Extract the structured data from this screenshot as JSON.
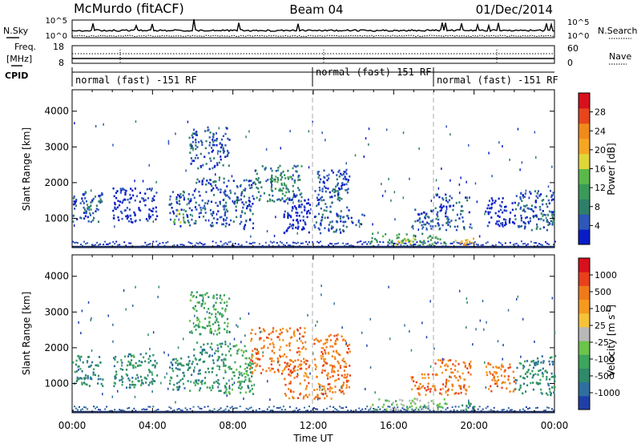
{
  "chart_data": [
    {
      "type": "line",
      "panel": "header",
      "station": "McMurdo (fitACF)",
      "beam": "Beam 04",
      "date": "01/Dec/2014",
      "left_label": "N.Sky",
      "right_label": "N.Search",
      "y_tick_labels": [
        "10^5",
        "10^0"
      ],
      "right_tick_labels": [
        "10^5",
        "10^0"
      ]
    },
    {
      "type": "line",
      "panel": "frequency",
      "left_label": "Freq.",
      "left_unit": "[MHz]",
      "left_ticks": [
        "18",
        "8"
      ],
      "right_label": "Nave",
      "right_ticks": [
        "60",
        "0"
      ]
    },
    {
      "type": "table",
      "panel": "cpid",
      "label": "CPID",
      "segments": [
        {
          "start": "00:00",
          "end": "12:00",
          "label": "normal (fast) -151 RF"
        },
        {
          "start": "12:00",
          "end": "18:00",
          "label": "normal (fast) 151 RF"
        },
        {
          "start": "18:00",
          "end": "24:00",
          "label": "normal (fast) -151 RF"
        }
      ]
    },
    {
      "type": "heatmap",
      "panel": "power",
      "ylabel": "Slant Range [km]",
      "y_ticks": [
        "1000",
        "2000",
        "3000",
        "4000"
      ],
      "ylim": [
        180,
        4600
      ],
      "xlim": [
        0,
        24
      ],
      "colorbar_label": "Power [dB]",
      "colorbar_ticks": [
        "4",
        "8",
        "12",
        "16",
        "20",
        "24",
        "28"
      ],
      "colorbar_colors": [
        "#0a1cc8",
        "#2e57b8",
        "#2e7f6a",
        "#3a9a58",
        "#5ab84a",
        "#dfd63a",
        "#f5a623",
        "#f08a1a",
        "#e8451c",
        "#d8101c"
      ],
      "scatter_regions": [
        {
          "t0": 0.0,
          "t1": 1.5,
          "r0": 900,
          "r1": 1800,
          "level": 1
        },
        {
          "t0": 0.6,
          "t1": 1.2,
          "r0": 1150,
          "r1": 1500,
          "level": 2
        },
        {
          "t0": 2.0,
          "t1": 4.2,
          "r0": 900,
          "r1": 1900,
          "level": 0
        },
        {
          "t0": 4.8,
          "t1": 6.0,
          "r0": 800,
          "r1": 1800,
          "level": 1
        },
        {
          "t0": 5.0,
          "t1": 5.6,
          "r0": 900,
          "r1": 1300,
          "level": 4
        },
        {
          "t0": 5.8,
          "t1": 7.8,
          "r0": 2400,
          "r1": 3600,
          "level": 1
        },
        {
          "t0": 6.0,
          "t1": 7.6,
          "r0": 800,
          "r1": 2200,
          "level": 1
        },
        {
          "t0": 7.5,
          "t1": 9.0,
          "r0": 700,
          "r1": 2100,
          "level": 1
        },
        {
          "t0": 9.0,
          "t1": 11.4,
          "r0": 1500,
          "r1": 2500,
          "level": 2
        },
        {
          "t0": 9.8,
          "t1": 10.8,
          "r0": 1800,
          "r1": 2200,
          "level": 3
        },
        {
          "t0": 10.5,
          "t1": 11.8,
          "r0": 600,
          "r1": 1700,
          "level": 0
        },
        {
          "t0": 12.0,
          "t1": 13.8,
          "r0": 600,
          "r1": 2400,
          "level": 1
        },
        {
          "t0": 13.0,
          "t1": 14.5,
          "r0": 800,
          "r1": 1200,
          "level": 1
        },
        {
          "t0": 14.8,
          "t1": 18.6,
          "r0": 230,
          "r1": 600,
          "level": 3
        },
        {
          "t0": 16.0,
          "t1": 17.2,
          "r0": 280,
          "r1": 500,
          "level": 5
        },
        {
          "t0": 16.8,
          "t1": 18.0,
          "r0": 700,
          "r1": 1300,
          "level": 1
        },
        {
          "t0": 18.0,
          "t1": 19.8,
          "r0": 700,
          "r1": 1700,
          "level": 1
        },
        {
          "t0": 19.0,
          "t1": 20.0,
          "r0": 250,
          "r1": 500,
          "level": 6
        },
        {
          "t0": 20.5,
          "t1": 22.0,
          "r0": 800,
          "r1": 1600,
          "level": 0
        },
        {
          "t0": 22.0,
          "t1": 24.0,
          "r0": 700,
          "r1": 1800,
          "level": 1
        },
        {
          "t0": 23.2,
          "t1": 24.0,
          "r0": 900,
          "r1": 1300,
          "level": 2
        }
      ]
    },
    {
      "type": "heatmap",
      "panel": "velocity",
      "ylabel": "Slant Range [km]",
      "y_ticks": [
        "1000",
        "2000",
        "3000",
        "4000"
      ],
      "ylim": [
        180,
        4600
      ],
      "xlim": [
        0,
        24
      ],
      "xlabel": "Time UT",
      "x_tick_labels": [
        "00:00",
        "04:00",
        "08:00",
        "12:00",
        "16:00",
        "20:00",
        "00:00"
      ],
      "colorbar_label": "Velocity [m s",
      "colorbar_label_superscript": "-1",
      "colorbar_label_close": "]",
      "colorbar_ticks": [
        "1000",
        "500",
        "100",
        "25",
        "-25",
        "-100",
        "-500",
        "-1000"
      ],
      "colorbar_colors": [
        "#1f3fa8",
        "#2f6fa0",
        "#2e8a6a",
        "#3ba65c",
        "#6cc44a",
        "#b8b8b8",
        "#f5c23a",
        "#f59a1f",
        "#f07a1a",
        "#e8401c",
        "#d8101c"
      ],
      "scatter_regions": [
        {
          "t0": 0.0,
          "t1": 1.5,
          "r0": 900,
          "r1": 1800,
          "level": 2
        },
        {
          "t0": 2.0,
          "t1": 4.2,
          "r0": 900,
          "r1": 1900,
          "level": 2
        },
        {
          "t0": 4.8,
          "t1": 6.0,
          "r0": 800,
          "r1": 1800,
          "level": 2
        },
        {
          "t0": 5.8,
          "t1": 7.8,
          "r0": 2400,
          "r1": 3600,
          "level": 3
        },
        {
          "t0": 6.0,
          "t1": 7.6,
          "r0": 800,
          "r1": 2200,
          "level": 2
        },
        {
          "t0": 7.5,
          "t1": 9.0,
          "r0": 700,
          "r1": 2100,
          "level": 3
        },
        {
          "t0": 8.8,
          "t1": 11.6,
          "r0": 1300,
          "r1": 2600,
          "level": 8
        },
        {
          "t0": 10.5,
          "t1": 11.8,
          "r0": 600,
          "r1": 1700,
          "level": 8
        },
        {
          "t0": 12.0,
          "t1": 13.8,
          "r0": 600,
          "r1": 2400,
          "level": 8
        },
        {
          "t0": 14.8,
          "t1": 18.6,
          "r0": 230,
          "r1": 600,
          "level": 4
        },
        {
          "t0": 16.8,
          "t1": 18.0,
          "r0": 700,
          "r1": 1300,
          "level": 8
        },
        {
          "t0": 18.0,
          "t1": 19.8,
          "r0": 700,
          "r1": 1700,
          "level": 8
        },
        {
          "t0": 19.0,
          "t1": 20.0,
          "r0": 250,
          "r1": 500,
          "level": 2
        },
        {
          "t0": 20.5,
          "t1": 22.0,
          "r0": 800,
          "r1": 1600,
          "level": 8
        },
        {
          "t0": 22.0,
          "t1": 24.0,
          "r0": 700,
          "r1": 1800,
          "level": 2
        }
      ]
    }
  ]
}
